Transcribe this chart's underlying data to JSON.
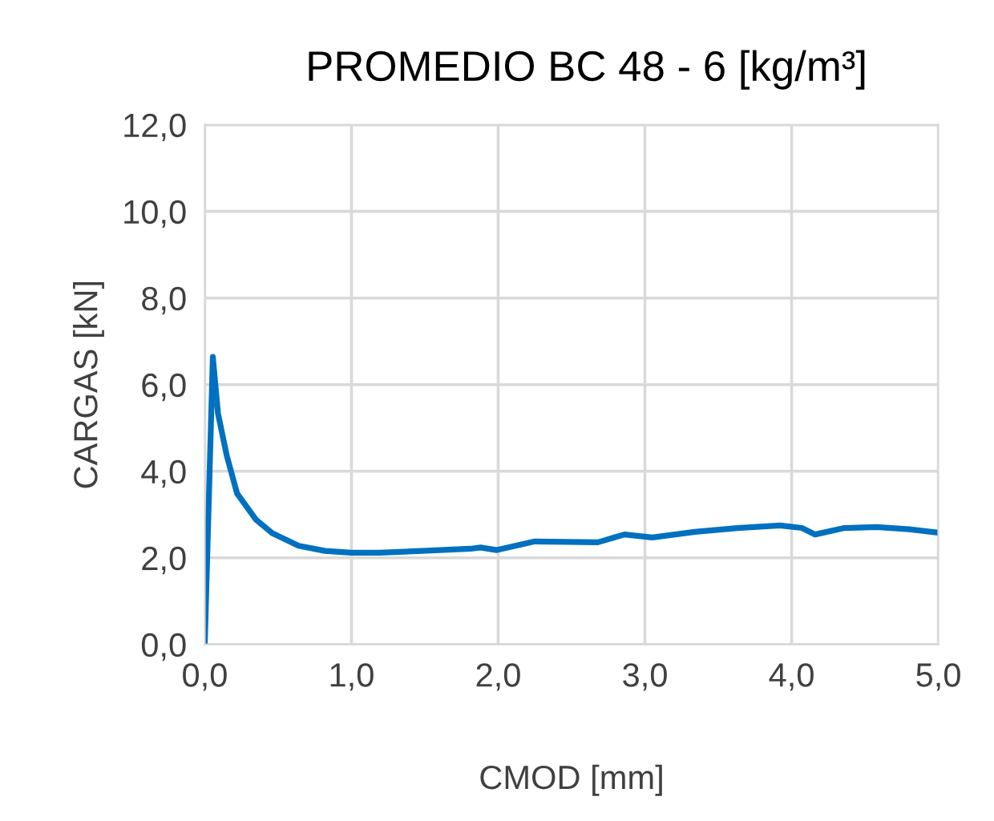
{
  "chart_data": {
    "type": "line",
    "title": "PROMEDIO BC 48 - 6 [kg/m³]",
    "xlabel": "CMOD [mm]",
    "ylabel": "CARGAS [kN]",
    "xlim": [
      0,
      5
    ],
    "ylim": [
      0,
      12
    ],
    "xticks": [
      {
        "value": 0,
        "label": "0,0"
      },
      {
        "value": 1,
        "label": "1,0"
      },
      {
        "value": 2,
        "label": "2,0"
      },
      {
        "value": 3,
        "label": "3,0"
      },
      {
        "value": 4,
        "label": "4,0"
      },
      {
        "value": 5,
        "label": "5,0"
      }
    ],
    "yticks": [
      {
        "value": 0,
        "label": "0,0"
      },
      {
        "value": 2,
        "label": "2,0"
      },
      {
        "value": 4,
        "label": "4,0"
      },
      {
        "value": 6,
        "label": "6,0"
      },
      {
        "value": 8,
        "label": "8,0"
      },
      {
        "value": 10,
        "label": "10,0"
      },
      {
        "value": 12,
        "label": "12,0"
      }
    ],
    "grid": true,
    "marker": "none",
    "line_style": "solid",
    "series": [
      {
        "color": "#0070c0",
        "x": [
          0,
          0.055,
          0.09,
          0.15,
          0.22,
          0.35,
          0.46,
          0.64,
          0.82,
          1.0,
          1.19,
          1.48,
          1.81,
          1.88,
          1.99,
          2.25,
          2.68,
          2.86,
          3.05,
          3.34,
          3.63,
          3.92,
          4.07,
          4.16,
          4.36,
          4.58,
          4.8,
          4.98
        ],
        "values": [
          0,
          6.64,
          5.34,
          4.36,
          3.49,
          2.88,
          2.57,
          2.28,
          2.16,
          2.12,
          2.12,
          2.16,
          2.21,
          2.24,
          2.18,
          2.38,
          2.36,
          2.54,
          2.47,
          2.6,
          2.69,
          2.75,
          2.69,
          2.54,
          2.69,
          2.71,
          2.66,
          2.59
        ]
      }
    ]
  }
}
